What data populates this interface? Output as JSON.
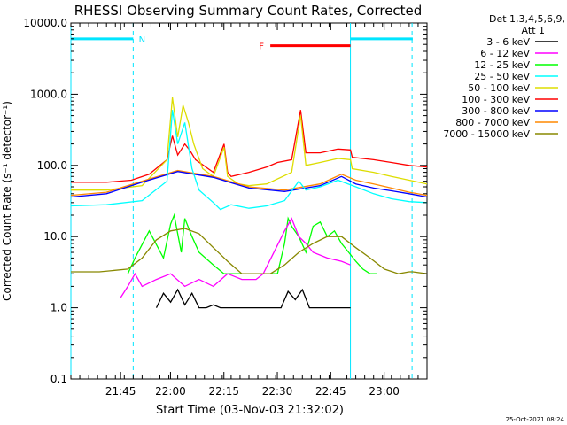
{
  "chart_data": {
    "type": "line",
    "title": "RHESSI Observing Summary Count Rates, Corrected",
    "xlabel": "Start Time (03-Nov-03 21:32:02)",
    "ylabel": "Corrected Count Rate (s⁻¹ detector⁻¹)",
    "yscale": "log",
    "ylim": [
      0.1,
      10000
    ],
    "xlim_minutes": [
      0,
      100
    ],
    "y_ticks": [
      {
        "v": 10000,
        "label": "10000.0"
      },
      {
        "v": 1000,
        "label": "1000.0"
      },
      {
        "v": 100,
        "label": "100.0"
      },
      {
        "v": 10,
        "label": "10.0"
      },
      {
        "v": 1,
        "label": "1.0"
      },
      {
        "v": 0.1,
        "label": "0.1"
      }
    ],
    "x_ticks": [
      {
        "t": 13.97,
        "label": "21:45"
      },
      {
        "t": 27.97,
        "label": "22:00"
      },
      {
        "t": 42.97,
        "label": "22:15"
      },
      {
        "t": 57.97,
        "label": "22:30"
      },
      {
        "t": 72.97,
        "label": "22:45"
      },
      {
        "t": 87.97,
        "label": "23:00"
      }
    ],
    "detectors_label": "Det 1,3,4,5,6,9,",
    "attenuator_label": "Att 1",
    "legend": [
      {
        "name": "3 - 6 keV",
        "color": "#000000"
      },
      {
        "name": "6 - 12 keV",
        "color": "#ff00ff"
      },
      {
        "name": "12 - 25 keV",
        "color": "#00ff00"
      },
      {
        "name": "25 - 50 keV",
        "color": "#00ffff"
      },
      {
        "name": "50 - 100 keV",
        "color": "#dddd00"
      },
      {
        "name": "100 - 300 keV",
        "color": "#ff0000"
      },
      {
        "name": "300 - 800 keV",
        "color": "#0000ff"
      },
      {
        "name": "800 - 7000 keV",
        "color": "#ff8800"
      },
      {
        "name": "7000 - 15000 keV",
        "color": "#888800"
      }
    ],
    "series": [
      {
        "name": "100 - 300 keV",
        "color": "#ff0000",
        "t": [
          0,
          10,
          17,
          22,
          27,
          28.5,
          30,
          32,
          33.5,
          35,
          40,
          43,
          44,
          45,
          50,
          55,
          58,
          62,
          64.5,
          66,
          70,
          75,
          78.5,
          79,
          85,
          90,
          95,
          100
        ],
        "v": [
          58,
          58,
          62,
          75,
          120,
          260,
          140,
          200,
          160,
          120,
          80,
          200,
          80,
          70,
          80,
          95,
          110,
          120,
          600,
          150,
          150,
          170,
          165,
          130,
          120,
          110,
          100,
          95
        ]
      },
      {
        "name": "50 - 100 keV",
        "color": "#dddd00",
        "t": [
          0,
          10,
          20,
          27,
          28.5,
          30,
          31.5,
          33,
          34.5,
          37,
          40,
          43,
          44,
          47,
          50,
          55,
          62,
          64.5,
          66,
          70,
          75,
          78.5,
          79,
          85,
          90,
          95,
          100
        ],
        "v": [
          45,
          45,
          52,
          120,
          900,
          250,
          700,
          400,
          200,
          90,
          70,
          180,
          70,
          55,
          52,
          55,
          80,
          500,
          100,
          110,
          125,
          120,
          90,
          80,
          70,
          62,
          55
        ]
      },
      {
        "name": "800 - 7000 keV",
        "color": "#ff8800",
        "t": [
          0,
          10,
          20,
          30,
          40,
          50,
          60,
          70,
          76,
          80,
          85,
          90,
          95,
          100
        ],
        "v": [
          38,
          42,
          60,
          85,
          70,
          50,
          45,
          55,
          75,
          62,
          55,
          48,
          42,
          38
        ]
      },
      {
        "name": "300 - 800 keV",
        "color": "#0000ff",
        "t": [
          0,
          10,
          20,
          30,
          40,
          50,
          60,
          70,
          76,
          80,
          85,
          90,
          95,
          100
        ],
        "v": [
          36,
          40,
          58,
          82,
          68,
          48,
          43,
          52,
          70,
          55,
          48,
          44,
          40,
          36
        ]
      },
      {
        "name": "25 - 50 keV",
        "color": "#00ffff",
        "t": [
          0,
          10,
          20,
          27,
          28.5,
          30,
          32,
          34,
          36,
          40,
          42,
          45,
          50,
          55,
          60,
          64,
          66,
          70,
          75,
          80,
          85,
          90,
          95,
          100
        ],
        "v": [
          27,
          28,
          32,
          60,
          600,
          200,
          400,
          90,
          45,
          30,
          24,
          28,
          25,
          27,
          32,
          60,
          45,
          50,
          62,
          50,
          40,
          34,
          31,
          30
        ]
      },
      {
        "name": "12 - 25 keV",
        "color": "#00ff00",
        "t": [
          16,
          18,
          22,
          26,
          28,
          29,
          31,
          32,
          34,
          36,
          40,
          43,
          58,
          60,
          61,
          62,
          64,
          66,
          68,
          70,
          72,
          74,
          76,
          78,
          80,
          82,
          84,
          86
        ],
        "v": [
          3,
          5,
          12,
          5,
          15,
          20,
          6,
          18,
          10,
          6,
          4,
          3,
          3,
          8,
          18,
          14,
          10,
          6,
          14,
          16,
          10,
          12,
          8,
          6,
          4.5,
          3.5,
          3,
          3
        ]
      },
      {
        "name": "6 - 12 keV",
        "color": "#ff00ff",
        "t": [
          14,
          16,
          18,
          20,
          24,
          28,
          32,
          36,
          40,
          44,
          48,
          52,
          54,
          60,
          62,
          64,
          66,
          68,
          72,
          76,
          78.5
        ],
        "v": [
          1.4,
          2,
          3,
          2,
          2.5,
          3,
          2,
          2.5,
          2,
          3,
          2.5,
          2.5,
          3,
          12,
          18,
          10,
          8,
          6,
          5,
          4.5,
          4
        ]
      },
      {
        "name": "7000 - 15000 keV",
        "color": "#888800",
        "t": [
          0,
          8,
          16,
          20,
          24,
          28,
          32,
          36,
          40,
          44,
          48,
          52,
          56,
          60,
          64,
          68,
          72,
          76,
          80,
          84,
          88,
          92,
          95,
          96,
          100
        ],
        "v": [
          3.2,
          3.2,
          3.5,
          5,
          9,
          12,
          13,
          11,
          7,
          4.5,
          3,
          3,
          3,
          4,
          6,
          8,
          10,
          10,
          7,
          5,
          3.5,
          3,
          3.2,
          3.2,
          3
        ]
      },
      {
        "name": "3 - 6 keV",
        "color": "#000000",
        "t": [
          24,
          26,
          28,
          30,
          32,
          34,
          36,
          38,
          40,
          42,
          44,
          59,
          61,
          63,
          65,
          67,
          70,
          75,
          78.5
        ],
        "v": [
          1,
          1.6,
          1.2,
          1.8,
          1.1,
          1.6,
          1,
          1,
          1.1,
          1,
          1,
          1,
          1.7,
          1.3,
          1.8,
          1,
          1,
          1,
          1
        ]
      }
    ],
    "annotations": [
      {
        "label": "N",
        "color": "#00e5ff",
        "t_start": 0,
        "t_end": 17.5,
        "v": 6000
      },
      {
        "label": "F",
        "color": "#ff0000",
        "t_start": 56,
        "t_end": 78.5,
        "v": 4800
      }
    ],
    "marker_times": [
      17.5,
      78.5,
      95.8
    ],
    "timestamp": "25-Oct-2021 08:24"
  }
}
